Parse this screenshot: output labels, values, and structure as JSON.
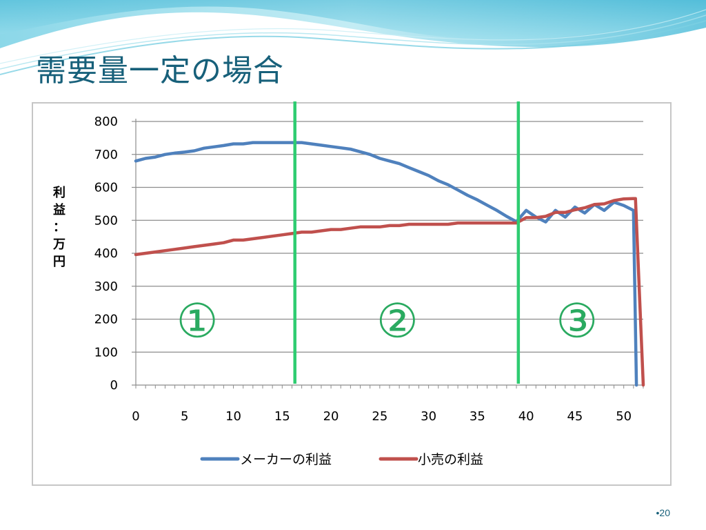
{
  "slide": {
    "title": "需要量一定の場合",
    "page_number": "•20"
  },
  "colors": {
    "title": "#17607a",
    "maker": "#4f81bd",
    "retail": "#c0504d",
    "divider": "#2ecc71",
    "region_label": "#2aaa60",
    "grid": "#8c8c8c"
  },
  "chart_data": {
    "type": "line",
    "xlabel": "",
    "ylabel": "利益：万円",
    "ylabel_chars": [
      "利",
      "益",
      "：",
      "万",
      "円"
    ],
    "xlim": [
      0,
      52
    ],
    "ylim": [
      0,
      800
    ],
    "x_ticks": [
      0,
      5,
      10,
      15,
      20,
      25,
      30,
      35,
      40,
      45,
      50
    ],
    "y_ticks": [
      0,
      100,
      200,
      300,
      400,
      500,
      600,
      700,
      800
    ],
    "grid": "horizontal",
    "legend_position": "bottom",
    "series": [
      {
        "name": "メーカーの利益",
        "color": "#4f81bd",
        "points": [
          [
            0,
            680
          ],
          [
            1,
            688
          ],
          [
            2,
            692
          ],
          [
            3,
            700
          ],
          [
            4,
            704
          ],
          [
            5,
            707
          ],
          [
            6,
            711
          ],
          [
            7,
            719
          ],
          [
            8,
            723
          ],
          [
            9,
            727
          ],
          [
            10,
            732
          ],
          [
            11,
            732
          ],
          [
            12,
            736
          ],
          [
            13,
            736
          ],
          [
            14,
            736
          ],
          [
            15,
            736
          ],
          [
            16,
            736
          ],
          [
            17,
            736
          ],
          [
            18,
            732
          ],
          [
            19,
            728
          ],
          [
            20,
            724
          ],
          [
            21,
            720
          ],
          [
            22,
            716
          ],
          [
            23,
            708
          ],
          [
            24,
            700
          ],
          [
            25,
            688
          ],
          [
            26,
            680
          ],
          [
            27,
            672
          ],
          [
            28,
            660
          ],
          [
            29,
            648
          ],
          [
            30,
            636
          ],
          [
            31,
            620
          ],
          [
            32,
            608
          ],
          [
            33,
            592
          ],
          [
            34,
            576
          ],
          [
            35,
            562
          ],
          [
            36,
            546
          ],
          [
            37,
            530
          ],
          [
            38,
            512
          ],
          [
            39,
            496
          ],
          [
            40,
            530
          ],
          [
            41,
            510
          ],
          [
            42,
            495
          ],
          [
            43,
            530
          ],
          [
            44,
            510
          ],
          [
            45,
            540
          ],
          [
            46,
            522
          ],
          [
            47,
            548
          ],
          [
            48,
            530
          ],
          [
            49,
            555
          ],
          [
            50,
            545
          ],
          [
            51,
            530
          ],
          [
            51.3,
            0
          ]
        ]
      },
      {
        "name": "小売の利益",
        "color": "#c0504d",
        "points": [
          [
            0,
            396
          ],
          [
            1,
            400
          ],
          [
            2,
            404
          ],
          [
            3,
            408
          ],
          [
            4,
            412
          ],
          [
            5,
            416
          ],
          [
            6,
            420
          ],
          [
            7,
            424
          ],
          [
            8,
            428
          ],
          [
            9,
            432
          ],
          [
            10,
            440
          ],
          [
            11,
            440
          ],
          [
            12,
            444
          ],
          [
            13,
            448
          ],
          [
            14,
            452
          ],
          [
            15,
            456
          ],
          [
            16,
            460
          ],
          [
            17,
            464
          ],
          [
            18,
            464
          ],
          [
            19,
            468
          ],
          [
            20,
            472
          ],
          [
            21,
            472
          ],
          [
            22,
            476
          ],
          [
            23,
            480
          ],
          [
            24,
            480
          ],
          [
            25,
            480
          ],
          [
            26,
            484
          ],
          [
            27,
            484
          ],
          [
            28,
            488
          ],
          [
            29,
            488
          ],
          [
            30,
            488
          ],
          [
            31,
            488
          ],
          [
            32,
            488
          ],
          [
            33,
            492
          ],
          [
            34,
            492
          ],
          [
            35,
            492
          ],
          [
            36,
            492
          ],
          [
            37,
            492
          ],
          [
            38,
            492
          ],
          [
            39,
            492
          ],
          [
            40,
            508
          ],
          [
            41,
            508
          ],
          [
            42,
            512
          ],
          [
            43,
            524
          ],
          [
            44,
            524
          ],
          [
            45,
            532
          ],
          [
            46,
            538
          ],
          [
            47,
            548
          ],
          [
            48,
            550
          ],
          [
            49,
            560
          ],
          [
            50,
            565
          ],
          [
            51,
            566
          ],
          [
            51.2,
            566
          ],
          [
            52,
            0
          ]
        ]
      }
    ],
    "dividers": [
      16.3,
      39.2
    ],
    "regions": [
      {
        "label": "①",
        "x": 6.3,
        "y": 200
      },
      {
        "label": "②",
        "x": 26.8,
        "y": 200
      },
      {
        "label": "③",
        "x": 45.2,
        "y": 200
      }
    ]
  }
}
